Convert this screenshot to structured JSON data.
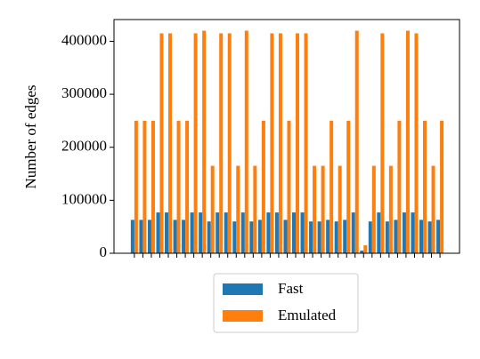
{
  "chart_data": {
    "type": "bar",
    "ylabel": "Number of edges",
    "categories": [
      null,
      null,
      null,
      null,
      null,
      null,
      null,
      null,
      null,
      null,
      null,
      null,
      null,
      null,
      null,
      null,
      null,
      null,
      null,
      null,
      null,
      null,
      null,
      null,
      null,
      null,
      null,
      null,
      null,
      null,
      null,
      null,
      null,
      null,
      null,
      null,
      null
    ],
    "series": [
      {
        "name": "Fast",
        "color": "#1f77b4",
        "values": [
          63000,
          63000,
          63000,
          77000,
          77000,
          63000,
          63000,
          77000,
          77000,
          60000,
          77000,
          77000,
          60000,
          77000,
          60000,
          63000,
          77000,
          77000,
          63000,
          77000,
          77000,
          60000,
          60000,
          63000,
          60000,
          63000,
          77000,
          5000,
          60000,
          77000,
          60000,
          63000,
          77000,
          77000,
          63000,
          60000,
          63000
        ]
      },
      {
        "name": "Emulated",
        "color": "#ff7f0e",
        "values": [
          250000,
          250000,
          250000,
          415000,
          415000,
          250000,
          250000,
          415000,
          420000,
          165000,
          415000,
          415000,
          165000,
          420000,
          165000,
          250000,
          415000,
          415000,
          250000,
          415000,
          415000,
          165000,
          165000,
          250000,
          165000,
          250000,
          420000,
          15000,
          165000,
          415000,
          165000,
          250000,
          420000,
          415000,
          250000,
          165000,
          250000
        ]
      }
    ],
    "ylim": [
      0,
      441000
    ],
    "yticks": [
      0,
      100000,
      200000,
      300000,
      400000
    ],
    "grid": false,
    "legend": "below"
  }
}
